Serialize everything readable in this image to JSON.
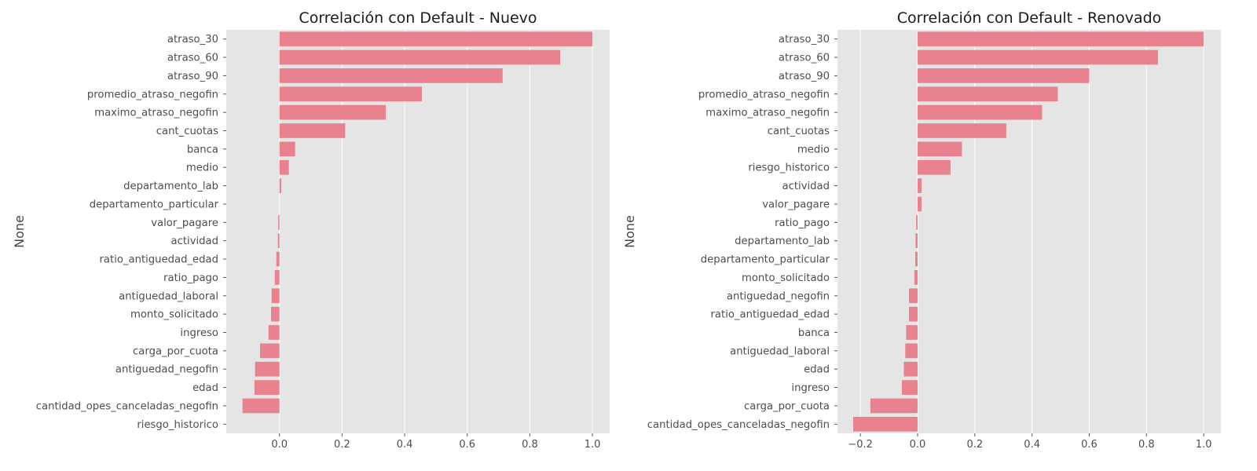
{
  "chart_data": [
    {
      "type": "bar",
      "orientation": "horizontal",
      "title": "Correlación con Default - Nuevo",
      "xlabel": "",
      "ylabel": "None",
      "xlim": [
        -0.17,
        1.055
      ],
      "xticks": [
        0.0,
        0.2,
        0.4,
        0.6,
        0.8,
        1.0
      ],
      "xtick_labels": [
        "0.0",
        "0.2",
        "0.4",
        "0.6",
        "0.8",
        "1.0"
      ],
      "grid": true,
      "bar_color": "#e8828f",
      "categories": [
        "atraso_30",
        "atraso_60",
        "atraso_90",
        "promedio_atraso_negofin",
        "maximo_atraso_negofin",
        "cant_cuotas",
        "banca",
        "medio",
        "departamento_lab",
        "departamento_particular",
        "valor_pagare",
        "actividad",
        "ratio_antiguedad_edad",
        "ratio_pago",
        "antiguedad_laboral",
        "monto_solicitado",
        "ingreso",
        "carga_por_cuota",
        "antiguedad_negofin",
        "edad",
        "cantidad_opes_canceladas_negofin",
        "riesgo_historico"
      ],
      "values": [
        1.0,
        0.897,
        0.713,
        0.455,
        0.34,
        0.21,
        0.05,
        0.03,
        0.006,
        0.0,
        -0.004,
        -0.005,
        -0.01,
        -0.015,
        -0.025,
        -0.027,
        -0.035,
        -0.062,
        -0.078,
        -0.08,
        -0.118,
        0.0
      ]
    },
    {
      "type": "bar",
      "orientation": "horizontal",
      "title": "Correlación con Default - Renovado",
      "xlabel": "",
      "ylabel": "None",
      "xlim": [
        -0.28,
        1.06
      ],
      "xticks": [
        -0.2,
        0.0,
        0.2,
        0.4,
        0.6,
        0.8,
        1.0
      ],
      "xtick_labels": [
        "−0.2",
        "0.0",
        "0.2",
        "0.4",
        "0.6",
        "0.8",
        "1.0"
      ],
      "grid": true,
      "bar_color": "#e8828f",
      "categories": [
        "atraso_30",
        "atraso_60",
        "atraso_90",
        "promedio_atraso_negofin",
        "maximo_atraso_negofin",
        "cant_cuotas",
        "medio",
        "riesgo_historico",
        "actividad",
        "valor_pagare",
        "ratio_pago",
        "departamento_lab",
        "departamento_particular",
        "monto_solicitado",
        "antiguedad_negofin",
        "ratio_antiguedad_edad",
        "banca",
        "antiguedad_laboral",
        "edad",
        "ingreso",
        "carga_por_cuota",
        "cantidad_opes_canceladas_negofin"
      ],
      "values": [
        1.0,
        0.84,
        0.6,
        0.49,
        0.435,
        0.31,
        0.155,
        0.115,
        0.014,
        0.014,
        -0.005,
        -0.007,
        -0.008,
        -0.011,
        -0.03,
        -0.03,
        -0.04,
        -0.043,
        -0.048,
        -0.055,
        -0.165,
        -0.225
      ]
    }
  ]
}
